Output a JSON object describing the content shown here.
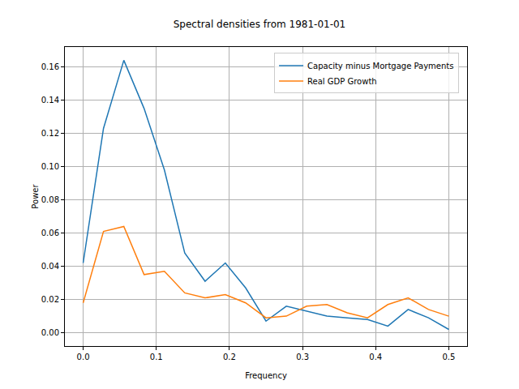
{
  "chart_data": {
    "type": "line",
    "title": "Spectral densities from 1981-01-01",
    "x_label": "Frequency",
    "y_label": "Power",
    "x": [
      0,
      0.0278,
      0.0556,
      0.0833,
      0.1111,
      0.1389,
      0.1667,
      0.1944,
      0.2222,
      0.25,
      0.2778,
      0.3056,
      0.3333,
      0.3611,
      0.3889,
      0.4167,
      0.4444,
      0.4722,
      0.5
    ],
    "series": [
      {
        "name": "Capacity minus Mortgage Payments",
        "color": "#1f77b4",
        "values": [
          0.042,
          0.123,
          0.164,
          0.135,
          0.098,
          0.048,
          0.031,
          0.042,
          0.027,
          0.007,
          0.016,
          0.013,
          0.01,
          0.009,
          0.008,
          0.004,
          0.014,
          0.009,
          0.002
        ]
      },
      {
        "name": "Real GDP Growth",
        "color": "#ff7f0e",
        "values": [
          0.018,
          0.061,
          0.064,
          0.035,
          0.037,
          0.024,
          0.021,
          0.023,
          0.018,
          0.009,
          0.01,
          0.016,
          0.017,
          0.012,
          0.009,
          0.017,
          0.021,
          0.014,
          0.01
        ]
      }
    ],
    "xlim": [
      -0.025,
      0.525
    ],
    "xticks": [
      {
        "value": 0,
        "label": "0.0"
      },
      {
        "value": 0.1,
        "label": "0.1"
      },
      {
        "value": 0.2,
        "label": "0.2"
      },
      {
        "value": 0.3,
        "label": "0.3"
      },
      {
        "value": 0.4,
        "label": "0.4"
      },
      {
        "value": 0.5,
        "label": "0.5"
      }
    ],
    "ylim": [
      -0.008,
      0.172
    ],
    "yticks": [
      {
        "value": 0,
        "label": "0.00"
      },
      {
        "value": 0.02,
        "label": "0.02"
      },
      {
        "value": 0.04,
        "label": "0.04"
      },
      {
        "value": 0.06,
        "label": "0.06"
      },
      {
        "value": 0.08,
        "label": "0.08"
      },
      {
        "value": 0.1,
        "label": "0.10"
      },
      {
        "value": 0.12,
        "label": "0.12"
      },
      {
        "value": 0.14,
        "label": "0.14"
      },
      {
        "value": 0.16,
        "label": "0.16"
      }
    ],
    "grid": true,
    "legend": "upper right"
  }
}
